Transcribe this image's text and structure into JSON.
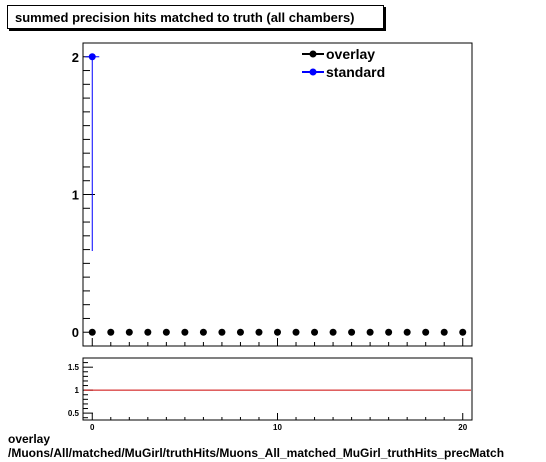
{
  "title": "summed precision hits matched to truth (all chambers)",
  "footer": {
    "line1": "overlay",
    "line2": "/Muons/All/matched/MuGirl/truthHits/Muons_All_matched_MuGirl_truthHits_precMatch"
  },
  "chart_data": [
    {
      "type": "scatter",
      "title": "summed precision hits matched to truth (all chambers)",
      "xlabel": "",
      "ylabel": "",
      "xlim": [
        -0.5,
        20.5
      ],
      "ylim": [
        -0.1,
        2.1
      ],
      "y_ticks": [
        0,
        1,
        2
      ],
      "legend": "top-right",
      "grid": false,
      "series": [
        {
          "name": "overlay",
          "color": "#000000",
          "x": [
            0,
            1,
            2,
            3,
            4,
            5,
            6,
            7,
            8,
            9,
            10,
            11,
            12,
            13,
            14,
            15,
            16,
            17,
            18,
            19,
            20
          ],
          "y": [
            0,
            0,
            0,
            0,
            0,
            0,
            0,
            0,
            0,
            0,
            0,
            0,
            0,
            0,
            0,
            0,
            0,
            0,
            0,
            0,
            0
          ]
        },
        {
          "name": "standard",
          "color": "#0000ff",
          "x": [
            0
          ],
          "y": [
            2
          ],
          "y_err_low": [
            1.41
          ]
        }
      ]
    },
    {
      "type": "line",
      "xlabel": "",
      "ylabel": "",
      "xlim": [
        -0.5,
        20.5
      ],
      "ylim": [
        0.35,
        1.7
      ],
      "x_ticks": [
        0,
        10,
        20
      ],
      "y_ticks": [
        0.5,
        1,
        1.5
      ],
      "reference_line": {
        "y": 1,
        "color": "#cc0000"
      },
      "grid": false
    }
  ]
}
